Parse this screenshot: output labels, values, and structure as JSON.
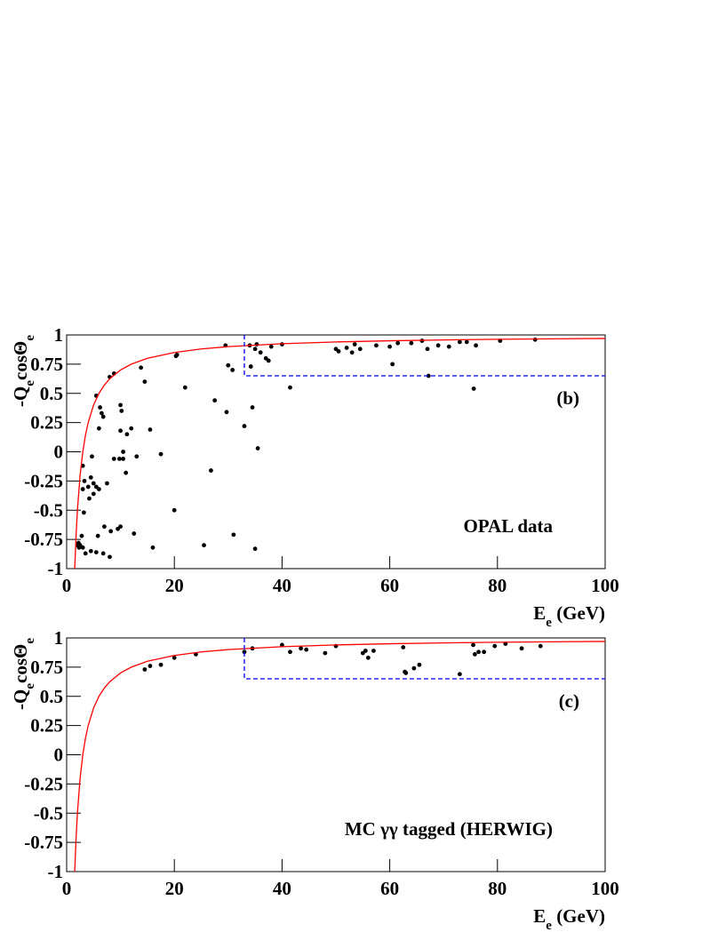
{
  "chart_data": [
    {
      "type": "scatter",
      "panel_label": "(b)",
      "annotation": "OPAL data",
      "xlabel": [
        "E",
        "e",
        " (GeV)"
      ],
      "ylabel": [
        "-Q",
        "e",
        "cosΘ",
        "e"
      ],
      "xlim": [
        0,
        100
      ],
      "ylim": [
        -1,
        1
      ],
      "xticks": [
        0,
        20,
        40,
        60,
        80,
        100
      ],
      "yticks": [
        -1,
        -0.75,
        -0.5,
        -0.25,
        0,
        0.25,
        0.5,
        0.75,
        1
      ],
      "series": [
        {
          "color": "#000000",
          "mode": "markers",
          "x": [
            2,
            2.3,
            2.5,
            2.8,
            3,
            2.2,
            3.2,
            3.5,
            3,
            3.3,
            3,
            4,
            4.2,
            4.5,
            4.7,
            4.5,
            5,
            5,
            5.5,
            5.5,
            5.8,
            6,
            5.5,
            6,
            6.2,
            6.5,
            6.8,
            6.8,
            7,
            7.5,
            8,
            8,
            8.2,
            8.8,
            8.8,
            9.5,
            9.8,
            10,
            10,
            10,
            10.2,
            10.5,
            10.5,
            11,
            11.2,
            12,
            12.5,
            13,
            13.8,
            14.5,
            15.5,
            16,
            17.5,
            20,
            20.3,
            20.5,
            22,
            25.5,
            26.8,
            27.5,
            29.5,
            29.7,
            30,
            30.8,
            31,
            33,
            34,
            34.5,
            34.2,
            35,
            35,
            35.3,
            35.5,
            36,
            37,
            37.5,
            38,
            40,
            41.5,
            50,
            50.5,
            52,
            53,
            53.5,
            54.5,
            57.5,
            60,
            60.5,
            61.5,
            64,
            66,
            67,
            67.2,
            69,
            71,
            73,
            74.3,
            75.6,
            76,
            80.5,
            87
          ],
          "values": [
            -0.8,
            -0.82,
            -0.8,
            -0.72,
            -0.82,
            -0.78,
            -0.52,
            -0.87,
            -0.12,
            -0.25,
            -0.32,
            -0.3,
            -0.4,
            -0.22,
            -0.04,
            -0.85,
            -0.36,
            -0.27,
            -0.3,
            -0.86,
            -0.72,
            -0.32,
            0.48,
            0.2,
            0.38,
            0.33,
            0.3,
            -0.87,
            -0.64,
            -0.27,
            0.64,
            -0.9,
            -0.68,
            0.67,
            -0.06,
            -0.66,
            -0.06,
            -0.64,
            0.18,
            0.4,
            0.35,
            0,
            -0.06,
            -0.18,
            0.15,
            0.2,
            -0.7,
            -0.04,
            0.72,
            0.6,
            0.19,
            -0.82,
            -0.02,
            -0.5,
            0.82,
            0.83,
            0.55,
            -0.8,
            -0.16,
            0.44,
            0.91,
            0.34,
            0.74,
            0.7,
            -0.71,
            0.22,
            0.91,
            0.38,
            0.73,
            -0.83,
            0.88,
            0.92,
            0.03,
            0.85,
            0.8,
            0.78,
            0.9,
            0.92,
            0.55,
            0.88,
            0.86,
            0.89,
            0.85,
            0.92,
            0.88,
            0.91,
            0.9,
            0.75,
            0.93,
            0.93,
            0.95,
            0.88,
            0.65,
            0.91,
            0.9,
            0.94,
            0.94,
            0.54,
            0.91,
            0.95,
            0.96
          ]
        },
        {
          "color": "#ff0000",
          "mode": "line",
          "x": [
            1.5,
            1.75,
            2,
            2.5,
            3,
            3.5,
            4,
            5,
            6,
            7,
            8,
            10,
            12,
            15,
            20,
            25,
            30,
            40,
            50,
            60,
            70,
            80,
            90,
            100
          ],
          "values": [
            -1,
            -0.714,
            -0.5,
            -0.2,
            0,
            0.143,
            0.25,
            0.4,
            0.5,
            0.571,
            0.625,
            0.7,
            0.75,
            0.8,
            0.85,
            0.88,
            0.9,
            0.925,
            0.94,
            0.95,
            0.957,
            0.963,
            0.967,
            0.97
          ]
        },
        {
          "color": "#0000ff",
          "mode": "dashed",
          "x": [
            33,
            33,
            100
          ],
          "values": [
            1,
            0.65,
            0.65
          ]
        }
      ]
    },
    {
      "type": "scatter",
      "panel_label": "(c)",
      "annotation": "MC γγ tagged (HERWIG)",
      "xlabel": [
        "E",
        "e",
        " (GeV)"
      ],
      "ylabel": [
        "-Q",
        "e",
        "cosΘ",
        "e"
      ],
      "xlim": [
        0,
        100
      ],
      "ylim": [
        -1,
        1
      ],
      "xticks": [
        0,
        20,
        40,
        60,
        80,
        100
      ],
      "yticks": [
        -1,
        -0.75,
        -0.5,
        -0.25,
        0,
        0.25,
        0.5,
        0.75,
        1
      ],
      "series": [
        {
          "color": "#000000",
          "mode": "markers",
          "x": [
            14.5,
            15.5,
            17.5,
            20,
            24,
            33,
            34.5,
            40,
            41.5,
            43.5,
            44.5,
            48,
            50,
            55,
            55.5,
            56,
            57,
            62.5,
            62.8,
            63,
            64.5,
            65.5,
            73,
            75.5,
            75.8,
            76.5,
            77.5,
            79.5,
            81.5,
            84.5,
            88
          ],
          "values": [
            0.73,
            0.76,
            0.77,
            0.83,
            0.86,
            0.88,
            0.91,
            0.94,
            0.88,
            0.91,
            0.9,
            0.87,
            0.93,
            0.87,
            0.89,
            0.83,
            0.89,
            0.92,
            0.71,
            0.7,
            0.74,
            0.77,
            0.69,
            0.94,
            0.86,
            0.88,
            0.88,
            0.93,
            0.95,
            0.91,
            0.93
          ]
        },
        {
          "color": "#ff0000",
          "mode": "line",
          "x": [
            1.5,
            1.75,
            2,
            2.5,
            3,
            3.5,
            4,
            5,
            6,
            7,
            8,
            10,
            12,
            15,
            20,
            25,
            30,
            40,
            50,
            60,
            70,
            80,
            90,
            100
          ],
          "values": [
            -1,
            -0.714,
            -0.5,
            -0.2,
            0,
            0.143,
            0.25,
            0.4,
            0.5,
            0.571,
            0.625,
            0.7,
            0.75,
            0.8,
            0.85,
            0.88,
            0.9,
            0.925,
            0.94,
            0.95,
            0.957,
            0.963,
            0.967,
            0.97
          ]
        },
        {
          "color": "#0000ff",
          "mode": "dashed",
          "x": [
            33,
            33,
            100
          ],
          "values": [
            1,
            0.65,
            0.65
          ]
        }
      ]
    }
  ]
}
